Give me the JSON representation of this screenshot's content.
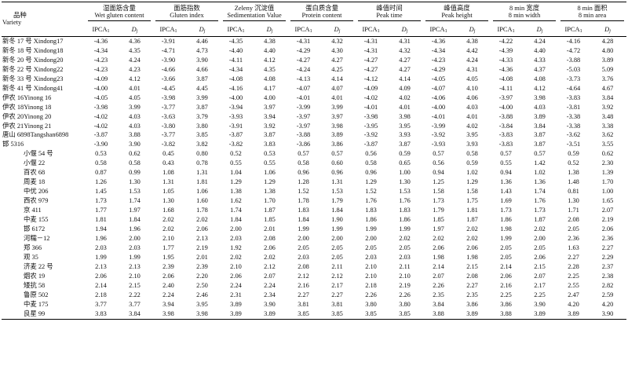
{
  "headers": {
    "variety_cn": "品种",
    "variety_en": "Variety",
    "groups": [
      {
        "cn": "湿面筋含量",
        "en": "Wet gluten content"
      },
      {
        "cn": "面筋指数",
        "en": "Gluten index"
      },
      {
        "cn": "Zeleny 沉淀值",
        "en": "Sedimentation Value"
      },
      {
        "cn": "蛋白质含量",
        "en": "Protein content"
      },
      {
        "cn": "峰值时间",
        "en": "Peak time"
      },
      {
        "cn": "峰值高度",
        "en": "Peak height"
      },
      {
        "cn": "8 min 宽度",
        "en": "8 min width"
      },
      {
        "cn": "8 min 面积",
        "en": "8 min area"
      }
    ],
    "sub_ipca": "IPCA",
    "sub_ipca_index": "1",
    "sub_dj": "D",
    "sub_dj_index": "j"
  },
  "rows": [
    {
      "variety": "新冬 17 号 Xindong17",
      "indent": false,
      "v": [
        "-4.36",
        "4.36",
        "-3.91",
        "4.46",
        "-4.35",
        "4.38",
        "-4.31",
        "4.32",
        "-4.31",
        "4.31",
        "-4.36",
        "4.38",
        "-4.22",
        "4.24",
        "-4.16",
        "4.28"
      ]
    },
    {
      "variety": "新冬 18 号 Xindong18",
      "indent": false,
      "v": [
        "-4.34",
        "4.35",
        "-4.71",
        "4.73",
        "-4.40",
        "4.40",
        "-4.29",
        "4.30",
        "-4.31",
        "4.32",
        "-4.34",
        "4.42",
        "-4.39",
        "4.40",
        "-4.72",
        "4.80"
      ]
    },
    {
      "variety": "新冬 20 号 Xindong20",
      "indent": false,
      "v": [
        "-4.23",
        "4.24",
        "-3.90",
        "3.90",
        "-4.11",
        "4.12",
        "-4.27",
        "4.27",
        "-4.27",
        "4.27",
        "-4.23",
        "4.24",
        "-4.33",
        "4.33",
        "-3.88",
        "3.89"
      ]
    },
    {
      "variety": "新冬 22 号 Xindong22",
      "indent": false,
      "v": [
        "-4.23",
        "4.23",
        "-4.66",
        "4.66",
        "-4.34",
        "4.35",
        "-4.24",
        "4.25",
        "-4.27",
        "4.27",
        "-4.29",
        "4.31",
        "-4.36",
        "4.37",
        "-5.03",
        "5.09"
      ]
    },
    {
      "variety": "新冬 33 号 Xindong23",
      "indent": false,
      "v": [
        "-4.09",
        "4.12",
        "-3.66",
        "3.87",
        "-4.08",
        "4.08",
        "-4.13",
        "4.14",
        "-4.12",
        "4.14",
        "-4.05",
        "4.05",
        "-4.08",
        "4.08",
        "-3.73",
        "3.76"
      ]
    },
    {
      "variety": "新冬 41 号 Xindong41",
      "indent": false,
      "v": [
        "-4.00",
        "4.01",
        "-4.45",
        "4.45",
        "-4.16",
        "4.17",
        "-4.07",
        "4.07",
        "-4.09",
        "4.09",
        "-4.07",
        "4.10",
        "-4.11",
        "4.12",
        "-4.64",
        "4.67"
      ]
    },
    {
      "variety": "伊农 16Yinong 16",
      "indent": false,
      "v": [
        "-4.05",
        "4.05",
        "-3.98",
        "3.99",
        "-4.00",
        "4.00",
        "-4.01",
        "4.01",
        "-4.02",
        "4.02",
        "-4.06",
        "4.06",
        "-3.97",
        "3.98",
        "-3.83",
        "3.84"
      ]
    },
    {
      "variety": "伊农 18Yinong 18",
      "indent": false,
      "v": [
        "-3.98",
        "3.99",
        "-3.77",
        "3.87",
        "-3.94",
        "3.97",
        "-3.99",
        "3.99",
        "-4.01",
        "4.01",
        "-4.00",
        "4.03",
        "-4.00",
        "4.03",
        "-3.81",
        "3.92"
      ]
    },
    {
      "variety": "伊农 20Yinong 20",
      "indent": false,
      "v": [
        "-4.02",
        "4.03",
        "-3.63",
        "3.79",
        "-3.93",
        "3.94",
        "-3.97",
        "3.97",
        "-3.98",
        "3.98",
        "-4.01",
        "4.01",
        "-3.88",
        "3.89",
        "-3.38",
        "3.48"
      ]
    },
    {
      "variety": "伊农 21Yinong 21",
      "indent": false,
      "v": [
        "-4.02",
        "4.03",
        "-3.80",
        "3.80",
        "-3.91",
        "3.92",
        "-3.97",
        "3.98",
        "-3.95",
        "3.95",
        "-3.99",
        "4.02",
        "-3.84",
        "3.84",
        "-3.38",
        "3.38"
      ]
    },
    {
      "variety": "唐山 6898Tangshan6898",
      "indent": false,
      "v": [
        "-3.87",
        "3.88",
        "-3.77",
        "3.85",
        "-3.87",
        "3.87",
        "-3.88",
        "3.89",
        "-3.92",
        "3.93",
        "-3.92",
        "3.95",
        "-3.83",
        "3.87",
        "-3.62",
        "3.62"
      ]
    },
    {
      "variety": "邯 5316",
      "indent": false,
      "v": [
        "-3.90",
        "3.90",
        "-3.82",
        "3.82",
        "-3.82",
        "3.83",
        "-3.86",
        "3.86",
        "-3.87",
        "3.87",
        "-3.93",
        "3.93",
        "-3.83",
        "3.87",
        "-3.51",
        "3.55"
      ]
    },
    {
      "variety": "小偃 54 号",
      "indent": true,
      "v": [
        "0.53",
        "0.62",
        "0.45",
        "0.80",
        "0.52",
        "0.53",
        "0.57",
        "0.57",
        "0.56",
        "0.59",
        "0.57",
        "0.58",
        "0.57",
        "0.57",
        "0.59",
        "0.62"
      ]
    },
    {
      "variety": "小偃 22",
      "indent": true,
      "v": [
        "0.58",
        "0.58",
        "0.43",
        "0.78",
        "0.55",
        "0.55",
        "0.58",
        "0.60",
        "0.58",
        "0.65",
        "0.56",
        "0.59",
        "0.55",
        "1.42",
        "0.52",
        "2.30"
      ]
    },
    {
      "variety": "百农 68",
      "indent": true,
      "v": [
        "0.87",
        "0.99",
        "1.08",
        "1.31",
        "1.04",
        "1.06",
        "0.96",
        "0.96",
        "0.96",
        "1.00",
        "0.94",
        "1.02",
        "0.94",
        "1.02",
        "1.38",
        "1.39"
      ]
    },
    {
      "variety": "周麦 18",
      "indent": true,
      "v": [
        "1.26",
        "1.30",
        "1.31",
        "1.81",
        "1.29",
        "1.29",
        "1.28",
        "1.31",
        "1.29",
        "1.30",
        "1.25",
        "1.29",
        "1.36",
        "1.36",
        "1.48",
        "1.70"
      ]
    },
    {
      "variety": "中优 206",
      "indent": true,
      "v": [
        "1.45",
        "1.53",
        "1.05",
        "1.06",
        "1.38",
        "1.38",
        "1.52",
        "1.53",
        "1.52",
        "1.53",
        "1.58",
        "1.58",
        "1.43",
        "1.74",
        "0.81",
        "1.00"
      ]
    },
    {
      "variety": "西农 979",
      "indent": true,
      "v": [
        "1.73",
        "1.74",
        "1.30",
        "1.60",
        "1.62",
        "1.70",
        "1.78",
        "1.79",
        "1.76",
        "1.76",
        "1.73",
        "1.75",
        "1.69",
        "1.76",
        "1.30",
        "1.65"
      ]
    },
    {
      "variety": "京 411",
      "indent": true,
      "v": [
        "1.77",
        "1.97",
        "1.68",
        "1.78",
        "1.74",
        "1.87",
        "1.83",
        "1.84",
        "1.83",
        "1.83",
        "1.79",
        "1.81",
        "1.73",
        "1.73",
        "1.71",
        "2.07"
      ]
    },
    {
      "variety": "中麦 155",
      "indent": true,
      "v": [
        "1.81",
        "1.84",
        "2.02",
        "2.02",
        "1.84",
        "1.85",
        "1.84",
        "1.90",
        "1.86",
        "1.86",
        "1.85",
        "1.87",
        "1.86",
        "1.87",
        "2.08",
        "2.19"
      ]
    },
    {
      "variety": "邯 6172",
      "indent": true,
      "v": [
        "1.94",
        "1.96",
        "2.02",
        "2.06",
        "2.00",
        "2.01",
        "1.99",
        "1.99",
        "1.99",
        "1.99",
        "1.97",
        "2.02",
        "1.98",
        "2.02",
        "2.05",
        "2.06"
      ]
    },
    {
      "variety": "河糯－12",
      "indent": true,
      "v": [
        "1.96",
        "2.00",
        "2.10",
        "2.13",
        "2.03",
        "2.08",
        "2.00",
        "2.00",
        "2.00",
        "2.02",
        "2.02",
        "2.02",
        "1.99",
        "2.00",
        "2.36",
        "2.36"
      ]
    },
    {
      "variety": "郑 366",
      "indent": true,
      "v": [
        "2.03",
        "2.03",
        "1.77",
        "2.19",
        "1.92",
        "2.06",
        "2.05",
        "2.05",
        "2.05",
        "2.05",
        "2.06",
        "2.06",
        "2.05",
        "2.05",
        "1.63",
        "2.27"
      ]
    },
    {
      "variety": "观 35",
      "indent": true,
      "v": [
        "1.99",
        "1.99",
        "1.95",
        "2.01",
        "2.02",
        "2.02",
        "2.03",
        "2.05",
        "2.03",
        "2.03",
        "1.98",
        "1.98",
        "2.05",
        "2.06",
        "2.27",
        "2.29"
      ]
    },
    {
      "variety": "济麦 22 号",
      "indent": true,
      "v": [
        "2.13",
        "2.13",
        "2.39",
        "2.39",
        "2.10",
        "2.12",
        "2.08",
        "2.11",
        "2.10",
        "2.11",
        "2.14",
        "2.15",
        "2.14",
        "2.15",
        "2.28",
        "2.37"
      ]
    },
    {
      "variety": "烟农 19",
      "indent": true,
      "v": [
        "2.06",
        "2.10",
        "2.06",
        "2.20",
        "2.06",
        "2.07",
        "2.12",
        "2.12",
        "2.10",
        "2.10",
        "2.07",
        "2.08",
        "2.06",
        "2.07",
        "2.25",
        "2.38"
      ]
    },
    {
      "variety": "矮抗 58",
      "indent": true,
      "v": [
        "2.14",
        "2.15",
        "2.40",
        "2.50",
        "2.24",
        "2.24",
        "2.16",
        "2.17",
        "2.18",
        "2.19",
        "2.26",
        "2.27",
        "2.16",
        "2.17",
        "2.55",
        "2.82"
      ]
    },
    {
      "variety": "鲁原 502",
      "indent": true,
      "v": [
        "2.18",
        "2.22",
        "2.24",
        "2.46",
        "2.31",
        "2.34",
        "2.27",
        "2.27",
        "2.26",
        "2.26",
        "2.35",
        "2.35",
        "2.25",
        "2.25",
        "2.47",
        "2.59"
      ]
    },
    {
      "variety": "中麦 175",
      "indent": true,
      "v": [
        "3.77",
        "3.77",
        "3.94",
        "3.95",
        "3.89",
        "3.90",
        "3.81",
        "3.81",
        "3.80",
        "3.80",
        "3.84",
        "3.86",
        "3.86",
        "3.90",
        "4.20",
        "4.20"
      ]
    },
    {
      "variety": "良星 99",
      "indent": true,
      "v": [
        "3.83",
        "3.84",
        "3.98",
        "3.98",
        "3.89",
        "3.89",
        "3.85",
        "3.85",
        "3.85",
        "3.85",
        "3.88",
        "3.89",
        "3.88",
        "3.89",
        "3.89",
        "3.90"
      ]
    }
  ]
}
